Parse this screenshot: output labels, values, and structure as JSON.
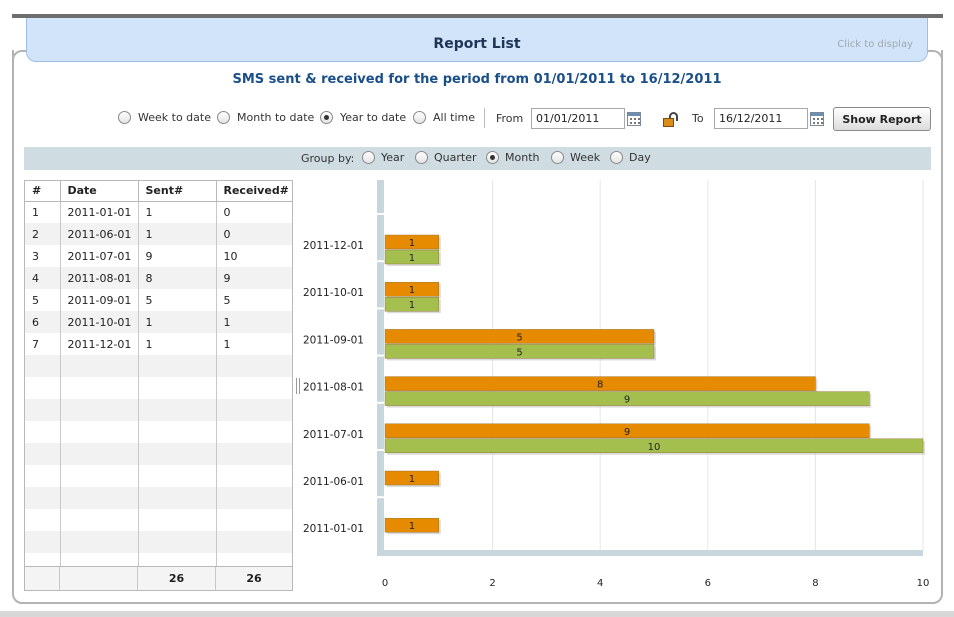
{
  "header": {
    "title": "Report List",
    "click_hint": "Click to display"
  },
  "subtitle": "SMS sent & received for the period from 01/01/2011 to 16/12/2011",
  "period_options": [
    {
      "label": "Week to date",
      "selected": false
    },
    {
      "label": "Month to date",
      "selected": false
    },
    {
      "label": "Year to date",
      "selected": true
    },
    {
      "label": "All time",
      "selected": false
    }
  ],
  "from": {
    "label": "From",
    "value": "01/01/2011"
  },
  "to": {
    "label": "To",
    "value": "16/12/2011"
  },
  "show_report_label": "Show Report",
  "group_by": {
    "label": "Group by:",
    "options": [
      {
        "label": "Year",
        "selected": false
      },
      {
        "label": "Quarter",
        "selected": false
      },
      {
        "label": "Month",
        "selected": true
      },
      {
        "label": "Week",
        "selected": false
      },
      {
        "label": "Day",
        "selected": false
      }
    ]
  },
  "table": {
    "columns": [
      "#",
      "Date",
      "Sent#",
      "Received#"
    ],
    "rows": [
      [
        "1",
        "2011-01-01",
        "1",
        "0"
      ],
      [
        "2",
        "2011-06-01",
        "1",
        "0"
      ],
      [
        "3",
        "2011-07-01",
        "9",
        "10"
      ],
      [
        "4",
        "2011-08-01",
        "8",
        "9"
      ],
      [
        "5",
        "2011-09-01",
        "5",
        "5"
      ],
      [
        "6",
        "2011-10-01",
        "1",
        "1"
      ],
      [
        "7",
        "2011-12-01",
        "1",
        "1"
      ]
    ],
    "totals": {
      "sent": "26",
      "received": "26"
    }
  },
  "colors": {
    "sent": "#e68a00",
    "received": "#a5bf4e",
    "axis": "#c8d6de"
  },
  "chart_data": {
    "type": "bar",
    "orientation": "horizontal",
    "categories": [
      "2011-12-01",
      "2011-10-01",
      "2011-09-01",
      "2011-08-01",
      "2011-07-01",
      "2011-06-01",
      "2011-01-01"
    ],
    "series": [
      {
        "values": [
          1,
          1,
          5,
          8,
          9,
          1,
          1
        ]
      },
      {
        "values": [
          1,
          1,
          5,
          9,
          10,
          0,
          0
        ]
      }
    ],
    "xlim": [
      0,
      10
    ],
    "xticks": [
      0,
      2,
      4,
      6,
      8,
      10
    ],
    "grid": true
  }
}
